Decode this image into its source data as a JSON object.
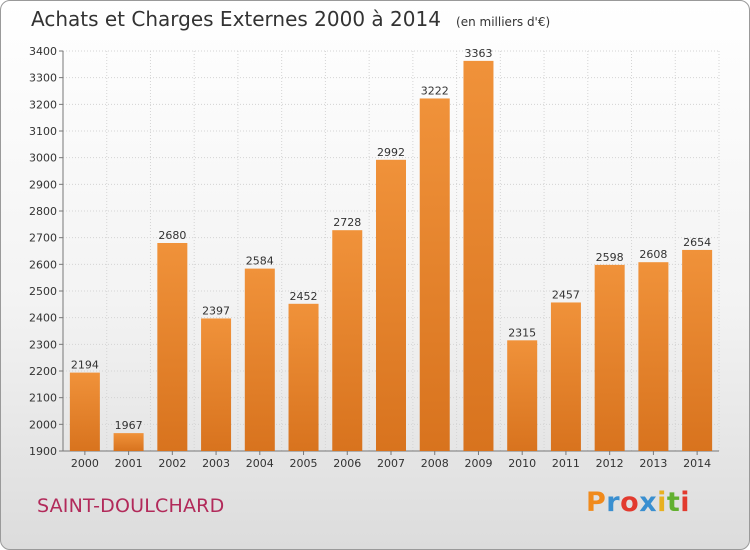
{
  "header": {
    "title": "Achats et Charges Externes 2000 à 2014",
    "unit": "(en milliers d'€)"
  },
  "footer": {
    "town": "SAINT-DOULCHARD",
    "brand": {
      "letters": [
        "P",
        "r",
        "o",
        "x",
        "i",
        "t",
        "i"
      ],
      "colors": [
        "#f08a1c",
        "#3a8fd0",
        "#e23a2e",
        "#3a8fd0",
        "#e8b020",
        "#62b030",
        "#e23a2e"
      ]
    }
  },
  "chart_data": {
    "type": "bar",
    "title": "Achats et Charges Externes 2000 à 2014",
    "subtitle": "(en milliers d'€)",
    "categories": [
      "2000",
      "2001",
      "2002",
      "2003",
      "2004",
      "2005",
      "2006",
      "2007",
      "2008",
      "2009",
      "2010",
      "2011",
      "2012",
      "2013",
      "2014"
    ],
    "values": [
      2194,
      1967,
      2680,
      2397,
      2584,
      2452,
      2728,
      2992,
      3222,
      3363,
      2315,
      2457,
      2598,
      2608,
      2654
    ],
    "ylim": [
      1900,
      3400
    ],
    "yticks": [
      1900,
      2000,
      2100,
      2200,
      2300,
      2400,
      2500,
      2600,
      2700,
      2800,
      2900,
      3000,
      3100,
      3200,
      3300,
      3400
    ],
    "grid": true,
    "bar_color": "#f0923a",
    "bar_color_dark": "#d8731e"
  }
}
